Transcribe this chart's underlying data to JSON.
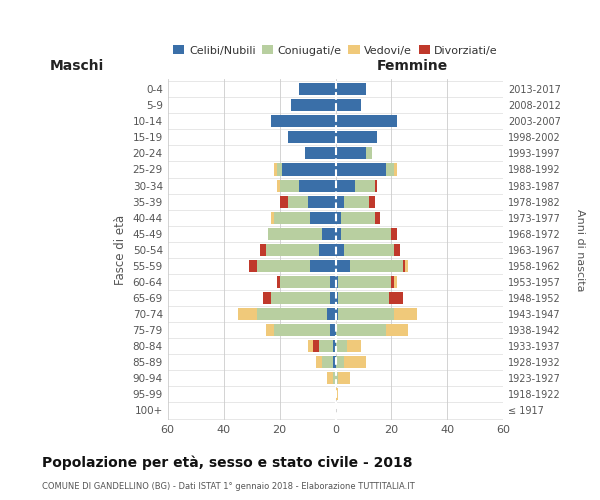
{
  "age_groups": [
    "100+",
    "95-99",
    "90-94",
    "85-89",
    "80-84",
    "75-79",
    "70-74",
    "65-69",
    "60-64",
    "55-59",
    "50-54",
    "45-49",
    "40-44",
    "35-39",
    "30-34",
    "25-29",
    "20-24",
    "15-19",
    "10-14",
    "5-9",
    "0-4"
  ],
  "birth_years": [
    "≤ 1917",
    "1918-1922",
    "1923-1927",
    "1928-1932",
    "1933-1937",
    "1938-1942",
    "1943-1947",
    "1948-1952",
    "1953-1957",
    "1958-1962",
    "1963-1967",
    "1968-1972",
    "1973-1977",
    "1978-1982",
    "1983-1987",
    "1988-1992",
    "1993-1997",
    "1998-2002",
    "2003-2007",
    "2008-2012",
    "2013-2017"
  ],
  "maschi": {
    "celibi": [
      0,
      0,
      0,
      1,
      1,
      2,
      3,
      2,
      2,
      9,
      6,
      5,
      9,
      10,
      13,
      19,
      11,
      17,
      23,
      16,
      13
    ],
    "coniugati": [
      0,
      0,
      1,
      4,
      5,
      20,
      25,
      21,
      18,
      19,
      19,
      19,
      13,
      7,
      7,
      2,
      0,
      0,
      0,
      0,
      0
    ],
    "vedovi": [
      0,
      0,
      2,
      2,
      4,
      3,
      7,
      1,
      1,
      1,
      0,
      0,
      1,
      0,
      1,
      1,
      0,
      0,
      0,
      0,
      0
    ],
    "divorziati": [
      0,
      0,
      0,
      0,
      2,
      0,
      0,
      3,
      1,
      3,
      2,
      0,
      0,
      3,
      0,
      0,
      0,
      0,
      0,
      0,
      0
    ]
  },
  "femmine": {
    "nubili": [
      0,
      0,
      0,
      0,
      0,
      0,
      1,
      1,
      1,
      5,
      3,
      2,
      2,
      3,
      7,
      18,
      11,
      15,
      22,
      9,
      11
    ],
    "coniugate": [
      0,
      0,
      1,
      3,
      4,
      18,
      20,
      18,
      19,
      19,
      18,
      18,
      12,
      9,
      7,
      3,
      2,
      0,
      0,
      0,
      0
    ],
    "vedove": [
      0,
      1,
      4,
      8,
      5,
      8,
      8,
      3,
      2,
      2,
      2,
      1,
      0,
      0,
      1,
      1,
      0,
      0,
      0,
      0,
      0
    ],
    "divorziate": [
      0,
      0,
      0,
      0,
      0,
      0,
      0,
      5,
      1,
      1,
      2,
      2,
      2,
      2,
      1,
      0,
      0,
      0,
      0,
      0,
      0
    ]
  },
  "colors": {
    "celibi": "#3a6fa8",
    "coniugati": "#b8cfa0",
    "vedovi": "#f0c97a",
    "divorziati": "#c0392b"
  },
  "xlim": 60,
  "title": "Popolazione per età, sesso e stato civile - 2018",
  "subtitle": "COMUNE DI GANDELLINO (BG) - Dati ISTAT 1° gennaio 2018 - Elaborazione TUTTITALIA.IT",
  "label_maschi": "Maschi",
  "label_femmine": "Femmine",
  "ylabel_left": "Fasce di età",
  "ylabel_right": "Anni di nascita",
  "legend_labels": [
    "Celibi/Nubili",
    "Coniugati/e",
    "Vedovi/e",
    "Divorziati/e"
  ],
  "bg_color": "#ffffff",
  "grid_color": "#cccccc",
  "text_color": "#555555"
}
